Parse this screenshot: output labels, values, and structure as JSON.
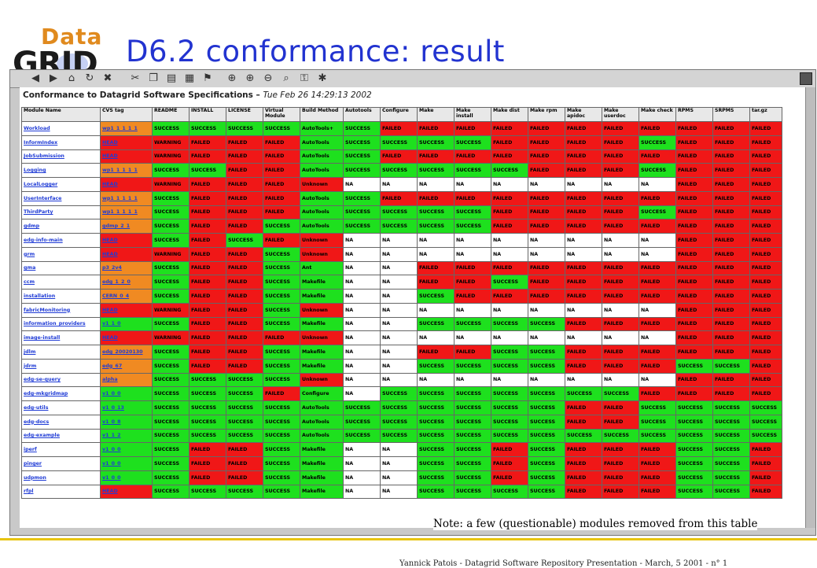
{
  "slide": {
    "title": "D6.2 conformance: result",
    "logo_top": "Data",
    "logo_bottom": "GRID",
    "note": "Note: a few (questionable) modules removed from this table",
    "footer": "Yannick Patois - Datagrid Software Repository Presentation - March, 5 2001 - n° 1"
  },
  "browser": {
    "toolbar_icons": [
      "back-icon",
      "forward-icon",
      "home-icon",
      "reload-icon",
      "stop-icon",
      "cut-icon",
      "copy-icon",
      "paste-icon",
      "print-icon",
      "bookmark-icon",
      "zoom-fit-icon",
      "zoom-in-icon",
      "zoom-out-icon",
      "zoom-icon",
      "secure-icon",
      "settings-icon"
    ]
  },
  "page": {
    "heading": "Conformance to Datagrid Software Specifications –",
    "timestamp": "Tue Feb 26 14:29:13 2002"
  },
  "colors": {
    "success": "#1ee01e",
    "failed": "#f01717",
    "tag_orange": "#f08a22",
    "link": "#1f3bd6",
    "title_blue": "#2233d0"
  },
  "table": {
    "headers": [
      "Module Name",
      "CVS tag",
      "README",
      "INSTALL",
      "LICENSE",
      "Virtual Module",
      "Build Method",
      "Autotools",
      "Configure",
      "Make",
      "Make install",
      "Make dist",
      "Make rpm",
      "Make apidoc",
      "Make userdoc",
      "Make check",
      "RPMS",
      "SRPMS",
      "tar.gz"
    ],
    "rows": [
      {
        "name": "Workload",
        "tag": "wp1_1_1_1_1",
        "tag_color": "orange",
        "cells": [
          "SUCCESS",
          "SUCCESS",
          "SUCCESS",
          "SUCCESS",
          "AutoTools+",
          "SUCCESS",
          "FAILED",
          "FAILED",
          "FAILED",
          "FAILED",
          "FAILED",
          "FAILED",
          "FAILED",
          "FAILED",
          "FAILED",
          "FAILED",
          "FAILED"
        ]
      },
      {
        "name": "InformIndex",
        "tag": "HEAD",
        "tag_color": "red",
        "cells": [
          "WARNING",
          "FAILED",
          "FAILED",
          "FAILED",
          "AutoTools",
          "SUCCESS",
          "SUCCESS",
          "SUCCESS",
          "SUCCESS",
          "FAILED",
          "FAILED",
          "FAILED",
          "FAILED",
          "SUCCESS",
          "FAILED",
          "FAILED",
          "FAILED"
        ]
      },
      {
        "name": "JobSubmission",
        "tag": "HEAD",
        "tag_color": "red",
        "cells": [
          "WARNING",
          "FAILED",
          "FAILED",
          "FAILED",
          "AutoTools",
          "SUCCESS",
          "FAILED",
          "FAILED",
          "FAILED",
          "FAILED",
          "FAILED",
          "FAILED",
          "FAILED",
          "FAILED",
          "FAILED",
          "FAILED",
          "FAILED"
        ]
      },
      {
        "name": "Logging",
        "tag": "wp1_1_1_1_1",
        "tag_color": "orange",
        "cells": [
          "SUCCESS",
          "SUCCESS",
          "FAILED",
          "FAILED",
          "AutoTools",
          "SUCCESS",
          "SUCCESS",
          "SUCCESS",
          "SUCCESS",
          "SUCCESS",
          "FAILED",
          "FAILED",
          "FAILED",
          "SUCCESS",
          "FAILED",
          "FAILED",
          "FAILED"
        ]
      },
      {
        "name": "LocalLogger",
        "tag": "HEAD",
        "tag_color": "red",
        "cells": [
          "WARNING",
          "FAILED",
          "FAILED",
          "FAILED",
          "Unknown",
          "NA",
          "NA",
          "NA",
          "NA",
          "NA",
          "NA",
          "NA",
          "NA",
          "NA",
          "FAILED",
          "FAILED",
          "FAILED"
        ]
      },
      {
        "name": "UserInterface",
        "tag": "wp1_1_1_1_1",
        "tag_color": "orange",
        "cells": [
          "SUCCESS",
          "FAILED",
          "FAILED",
          "FAILED",
          "AutoTools",
          "SUCCESS",
          "FAILED",
          "FAILED",
          "FAILED",
          "FAILED",
          "FAILED",
          "FAILED",
          "FAILED",
          "FAILED",
          "FAILED",
          "FAILED",
          "FAILED"
        ]
      },
      {
        "name": "ThirdParty",
        "tag": "wp1_1_1_1_1",
        "tag_color": "orange",
        "cells": [
          "SUCCESS",
          "FAILED",
          "FAILED",
          "FAILED",
          "AutoTools",
          "SUCCESS",
          "SUCCESS",
          "SUCCESS",
          "SUCCESS",
          "FAILED",
          "FAILED",
          "FAILED",
          "FAILED",
          "SUCCESS",
          "FAILED",
          "FAILED",
          "FAILED"
        ]
      },
      {
        "name": "gdmp",
        "tag": "gdmp_2_1",
        "tag_color": "orange",
        "cells": [
          "SUCCESS",
          "FAILED",
          "FAILED",
          "SUCCESS",
          "AutoTools",
          "SUCCESS",
          "SUCCESS",
          "SUCCESS",
          "SUCCESS",
          "FAILED",
          "FAILED",
          "FAILED",
          "FAILED",
          "FAILED",
          "FAILED",
          "FAILED",
          "FAILED"
        ]
      },
      {
        "name": "edg-info-main",
        "tag": "HEAD",
        "tag_color": "red",
        "cells": [
          "SUCCESS",
          "FAILED",
          "SUCCESS",
          "FAILED",
          "Unknown",
          "NA",
          "NA",
          "NA",
          "NA",
          "NA",
          "NA",
          "NA",
          "NA",
          "NA",
          "FAILED",
          "FAILED",
          "FAILED"
        ]
      },
      {
        "name": "grm",
        "tag": "HEAD",
        "tag_color": "red",
        "cells": [
          "WARNING",
          "FAILED",
          "FAILED",
          "SUCCESS",
          "Unknown",
          "NA",
          "NA",
          "NA",
          "NA",
          "NA",
          "NA",
          "NA",
          "NA",
          "NA",
          "FAILED",
          "FAILED",
          "FAILED"
        ]
      },
      {
        "name": "gma",
        "tag": "p3_2v4",
        "tag_color": "orange",
        "cells": [
          "SUCCESS",
          "FAILED",
          "FAILED",
          "SUCCESS",
          "Ant",
          "NA",
          "NA",
          "FAILED",
          "FAILED",
          "FAILED",
          "FAILED",
          "FAILED",
          "FAILED",
          "FAILED",
          "FAILED",
          "FAILED",
          "FAILED"
        ]
      },
      {
        "name": "ccm",
        "tag": "edg_1_2_0",
        "tag_color": "orange",
        "cells": [
          "SUCCESS",
          "FAILED",
          "FAILED",
          "SUCCESS",
          "Makefile",
          "NA",
          "NA",
          "FAILED",
          "FAILED",
          "SUCCESS",
          "FAILED",
          "FAILED",
          "FAILED",
          "FAILED",
          "FAILED",
          "FAILED",
          "FAILED"
        ]
      },
      {
        "name": "installation",
        "tag": "CERN_0_4",
        "tag_color": "orange",
        "cells": [
          "SUCCESS",
          "FAILED",
          "FAILED",
          "SUCCESS",
          "Makefile",
          "NA",
          "NA",
          "SUCCESS",
          "FAILED",
          "FAILED",
          "FAILED",
          "FAILED",
          "FAILED",
          "FAILED",
          "FAILED",
          "FAILED",
          "FAILED"
        ]
      },
      {
        "name": "fabricMonitoring",
        "tag": "HEAD",
        "tag_color": "red",
        "cells": [
          "WARNING",
          "FAILED",
          "FAILED",
          "SUCCESS",
          "Unknown",
          "NA",
          "NA",
          "NA",
          "NA",
          "NA",
          "NA",
          "NA",
          "NA",
          "NA",
          "FAILED",
          "FAILED",
          "FAILED"
        ]
      },
      {
        "name": "information_providers",
        "tag": "v1_1_0",
        "tag_color": "green",
        "cells": [
          "SUCCESS",
          "FAILED",
          "FAILED",
          "SUCCESS",
          "Makefile",
          "NA",
          "NA",
          "SUCCESS",
          "SUCCESS",
          "SUCCESS",
          "SUCCESS",
          "FAILED",
          "FAILED",
          "FAILED",
          "FAILED",
          "FAILED",
          "FAILED"
        ]
      },
      {
        "name": "image-install",
        "tag": "HEAD",
        "tag_color": "red",
        "cells": [
          "WARNING",
          "FAILED",
          "FAILED",
          "FAILED",
          "Unknown",
          "NA",
          "NA",
          "NA",
          "NA",
          "NA",
          "NA",
          "NA",
          "NA",
          "NA",
          "FAILED",
          "FAILED",
          "FAILED"
        ]
      },
      {
        "name": "jdlm",
        "tag": "edg_20020130",
        "tag_color": "orange",
        "cells": [
          "SUCCESS",
          "FAILED",
          "FAILED",
          "SUCCESS",
          "Makefile",
          "NA",
          "NA",
          "FAILED",
          "FAILED",
          "SUCCESS",
          "SUCCESS",
          "FAILED",
          "FAILED",
          "FAILED",
          "FAILED",
          "FAILED",
          "FAILED"
        ]
      },
      {
        "name": "jdrm",
        "tag": "edg_67",
        "tag_color": "orange",
        "cells": [
          "SUCCESS",
          "FAILED",
          "FAILED",
          "SUCCESS",
          "Makefile",
          "NA",
          "NA",
          "SUCCESS",
          "SUCCESS",
          "SUCCESS",
          "SUCCESS",
          "FAILED",
          "FAILED",
          "FAILED",
          "SUCCESS",
          "SUCCESS",
          "FAILED"
        ]
      },
      {
        "name": "edg-se-query",
        "tag": "alpha",
        "tag_color": "orange",
        "cells": [
          "SUCCESS",
          "SUCCESS",
          "SUCCESS",
          "SUCCESS",
          "Unknown",
          "NA",
          "NA",
          "NA",
          "NA",
          "NA",
          "NA",
          "NA",
          "NA",
          "NA",
          "FAILED",
          "FAILED",
          "FAILED"
        ]
      },
      {
        "name": "edg-mkgridmap",
        "tag": "v1_0_0",
        "tag_color": "green",
        "cells": [
          "SUCCESS",
          "SUCCESS",
          "SUCCESS",
          "FAILED",
          "Configure",
          "NA",
          "SUCCESS",
          "SUCCESS",
          "SUCCESS",
          "SUCCESS",
          "SUCCESS",
          "SUCCESS",
          "SUCCESS",
          "FAILED",
          "FAILED",
          "FAILED",
          "FAILED"
        ]
      },
      {
        "name": "edg-utils",
        "tag": "v1_0_13",
        "tag_color": "green",
        "cells": [
          "SUCCESS",
          "SUCCESS",
          "SUCCESS",
          "SUCCESS",
          "AutoTools",
          "SUCCESS",
          "SUCCESS",
          "SUCCESS",
          "SUCCESS",
          "SUCCESS",
          "SUCCESS",
          "FAILED",
          "FAILED",
          "SUCCESS",
          "SUCCESS",
          "SUCCESS",
          "SUCCESS"
        ]
      },
      {
        "name": "edg-docs",
        "tag": "v1_0_8",
        "tag_color": "green",
        "cells": [
          "SUCCESS",
          "SUCCESS",
          "SUCCESS",
          "SUCCESS",
          "AutoTools",
          "SUCCESS",
          "SUCCESS",
          "SUCCESS",
          "SUCCESS",
          "SUCCESS",
          "SUCCESS",
          "FAILED",
          "FAILED",
          "SUCCESS",
          "SUCCESS",
          "SUCCESS",
          "SUCCESS"
        ]
      },
      {
        "name": "edg-example",
        "tag": "v1_1_2",
        "tag_color": "green",
        "cells": [
          "SUCCESS",
          "SUCCESS",
          "SUCCESS",
          "SUCCESS",
          "AutoTools",
          "SUCCESS",
          "SUCCESS",
          "SUCCESS",
          "SUCCESS",
          "SUCCESS",
          "SUCCESS",
          "SUCCESS",
          "SUCCESS",
          "SUCCESS",
          "SUCCESS",
          "SUCCESS",
          "SUCCESS"
        ]
      },
      {
        "name": "iperf",
        "tag": "v1_0_0",
        "tag_color": "green",
        "cells": [
          "SUCCESS",
          "FAILED",
          "FAILED",
          "SUCCESS",
          "Makefile",
          "NA",
          "NA",
          "SUCCESS",
          "SUCCESS",
          "FAILED",
          "SUCCESS",
          "FAILED",
          "FAILED",
          "FAILED",
          "SUCCESS",
          "SUCCESS",
          "FAILED"
        ]
      },
      {
        "name": "pinger",
        "tag": "v1_0_0",
        "tag_color": "green",
        "cells": [
          "SUCCESS",
          "FAILED",
          "FAILED",
          "SUCCESS",
          "Makefile",
          "NA",
          "NA",
          "SUCCESS",
          "SUCCESS",
          "FAILED",
          "SUCCESS",
          "FAILED",
          "FAILED",
          "FAILED",
          "SUCCESS",
          "SUCCESS",
          "FAILED"
        ]
      },
      {
        "name": "udpmon",
        "tag": "v1_0_0",
        "tag_color": "green",
        "cells": [
          "SUCCESS",
          "FAILED",
          "FAILED",
          "SUCCESS",
          "Makefile",
          "NA",
          "NA",
          "SUCCESS",
          "SUCCESS",
          "FAILED",
          "SUCCESS",
          "FAILED",
          "FAILED",
          "FAILED",
          "SUCCESS",
          "SUCCESS",
          "FAILED"
        ]
      },
      {
        "name": "rfpl",
        "tag": "HEAD",
        "tag_color": "red",
        "cells": [
          "SUCCESS",
          "SUCCESS",
          "SUCCESS",
          "SUCCESS",
          "Makefile",
          "NA",
          "NA",
          "SUCCESS",
          "SUCCESS",
          "SUCCESS",
          "SUCCESS",
          "FAILED",
          "FAILED",
          "FAILED",
          "SUCCESS",
          "SUCCESS",
          "FAILED"
        ]
      }
    ]
  }
}
